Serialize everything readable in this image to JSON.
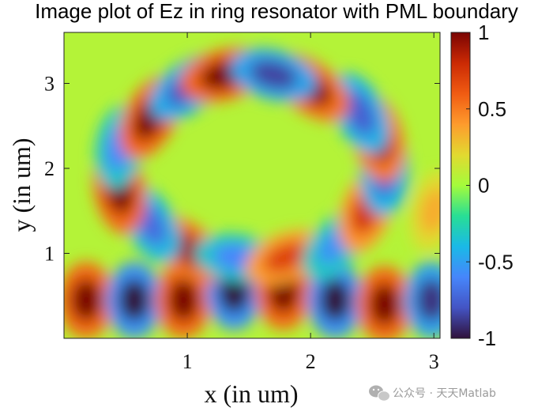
{
  "chart_data": {
    "type": "heatmap",
    "title": "Image plot of Ez in ring resonator with PML boundary",
    "xlabel": "x (in um)",
    "ylabel": "y (in um)",
    "xlim": [
      0.0,
      3.05
    ],
    "ylim": [
      3.6,
      0.0
    ],
    "x_ticks": [
      1,
      2,
      3
    ],
    "x_tick_labels": [
      "1",
      "2",
      "3"
    ],
    "y_ticks": [
      1,
      2,
      3
    ],
    "y_tick_labels": [
      "1",
      "2",
      "3"
    ],
    "colorbar": {
      "min": -1,
      "max": 1,
      "ticks": [
        1,
        0.5,
        0,
        -0.5,
        -1
      ],
      "tick_labels": [
        "1",
        "0.5",
        "0",
        "-0.5",
        "-1"
      ],
      "colormap": "turbo"
    },
    "background_value": 0.05,
    "lobes": [
      {
        "x": 0.18,
        "y": 0.45,
        "value": 1.0
      },
      {
        "x": 0.57,
        "y": 0.45,
        "value": -1.0
      },
      {
        "x": 0.97,
        "y": 0.45,
        "value": 1.0
      },
      {
        "x": 1.38,
        "y": 0.55,
        "value": -1.0
      },
      {
        "x": 1.78,
        "y": 0.55,
        "value": 1.0
      },
      {
        "x": 2.2,
        "y": 0.45,
        "value": -1.0
      },
      {
        "x": 2.6,
        "y": 0.4,
        "value": 1.0
      },
      {
        "x": 2.98,
        "y": 0.45,
        "value": -0.9
      },
      {
        "x": 1.0,
        "y": 1.05,
        "value": 0.9
      },
      {
        "x": 1.4,
        "y": 0.95,
        "value": -0.6
      },
      {
        "x": 1.8,
        "y": 0.95,
        "value": 0.7
      },
      {
        "x": 2.2,
        "y": 1.1,
        "value": -0.55
      },
      {
        "x": 0.7,
        "y": 1.35,
        "value": -0.7
      },
      {
        "x": 2.45,
        "y": 1.5,
        "value": 0.75
      },
      {
        "x": 0.45,
        "y": 1.75,
        "value": 1.0
      },
      {
        "x": 2.6,
        "y": 1.95,
        "value": -0.75
      },
      {
        "x": 0.45,
        "y": 2.25,
        "value": -0.6
      },
      {
        "x": 2.55,
        "y": 2.35,
        "value": 0.9
      },
      {
        "x": 0.7,
        "y": 2.6,
        "value": 1.0
      },
      {
        "x": 2.4,
        "y": 2.65,
        "value": -0.75
      },
      {
        "x": 1.0,
        "y": 2.95,
        "value": -0.8
      },
      {
        "x": 2.0,
        "y": 2.95,
        "value": 0.95
      },
      {
        "x": 1.3,
        "y": 3.1,
        "value": 1.0
      },
      {
        "x": 1.7,
        "y": 3.1,
        "value": -0.85
      },
      {
        "x": 3.0,
        "y": 1.5,
        "value": 0.35
      }
    ]
  },
  "watermark": {
    "text": "公众号 · 天天Matlab",
    "icon": "wechat-icon",
    "color": "#9b9b9b"
  }
}
